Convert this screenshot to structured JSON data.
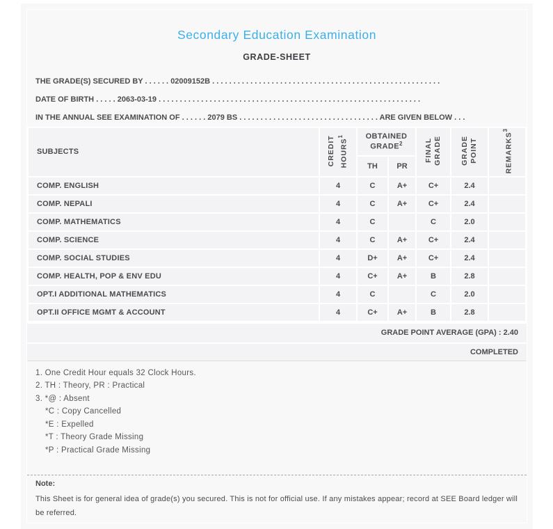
{
  "header": {
    "title": "Secondary Education Examination",
    "subtitle": "GRADE-SHEET",
    "title_color": "#3cafe8"
  },
  "student_info": [
    {
      "label": "THE GRADE(S) SECURED BY",
      "pre_dots": ". . . . . .",
      "value": "02009152B",
      "post_dots": ". . . . . . . . . . . . . . . . . . . . . . . . . . . . . . . . . . . . . . . . . . . . . . . . . . . . . .",
      "suffix": "",
      "end_dots": ""
    },
    {
      "label": "DATE OF BIRTH",
      "pre_dots": ". . . . .",
      "value": "2063-03-19",
      "post_dots": ". . . . . . . . . . . . . . . . . . . . . . . . . . . . . . . . . . . . . . . . . . . . . . . . . . . . . . . . . . . . . .",
      "suffix": "",
      "end_dots": ""
    },
    {
      "label": "IN THE ANNUAL SEE EXAMINATION OF",
      "pre_dots": ". . . . . .",
      "value": "2079 BS",
      "post_dots": ". . . . . . . . . . . . . . . . . . . . . . . . . . . . . . . . .",
      "suffix": "ARE GIVEN BELOW",
      "end_dots": ". . ."
    }
  ],
  "table": {
    "headers": {
      "subjects": "SUBJECTS",
      "credit_hours": {
        "line1": "CREDIT",
        "line2": "HOURS",
        "sup": "1"
      },
      "obtained_grade": {
        "text": "OBTAINED GRADE",
        "sup": "2"
      },
      "th": "TH",
      "pr": "PR",
      "final_grade": {
        "line1": "FINAL",
        "line2": "GRADE",
        "sup": ""
      },
      "grade_point": {
        "line1": "GRADE",
        "line2": "POINT",
        "sup": ""
      },
      "remarks": {
        "text": "REMARKS",
        "sup": "3"
      }
    },
    "rows": [
      {
        "subject": "COMP. ENGLISH",
        "credit": "4",
        "th": "C",
        "pr": "A+",
        "final": "C+",
        "gp": "2.4",
        "remarks": ""
      },
      {
        "subject": "COMP. NEPALI",
        "credit": "4",
        "th": "C",
        "pr": "A+",
        "final": "C+",
        "gp": "2.4",
        "remarks": ""
      },
      {
        "subject": "COMP. MATHEMATICS",
        "credit": "4",
        "th": "C",
        "pr": "",
        "final": "C",
        "gp": "2.0",
        "remarks": ""
      },
      {
        "subject": "COMP. SCIENCE",
        "credit": "4",
        "th": "C",
        "pr": "A+",
        "final": "C+",
        "gp": "2.4",
        "remarks": ""
      },
      {
        "subject": "COMP. SOCIAL STUDIES",
        "credit": "4",
        "th": "D+",
        "pr": "A+",
        "final": "C+",
        "gp": "2.4",
        "remarks": ""
      },
      {
        "subject": "COMP. HEALTH, POP & ENV EDU",
        "credit": "4",
        "th": "C+",
        "pr": "A+",
        "final": "B",
        "gp": "2.8",
        "remarks": ""
      },
      {
        "subject": "OPT.I ADDITIONAL MATHEMATICS",
        "credit": "4",
        "th": "C",
        "pr": "",
        "final": "C",
        "gp": "2.0",
        "remarks": ""
      },
      {
        "subject": "OPT.II OFFICE MGMT & ACCOUNT",
        "credit": "4",
        "th": "C+",
        "pr": "A+",
        "final": "B",
        "gp": "2.8",
        "remarks": ""
      }
    ]
  },
  "summary": {
    "gpa_line": "GRADE POINT AVERAGE (GPA) : 2.40",
    "status": "COMPLETED"
  },
  "footnotes": [
    {
      "text": "1. One Credit Hour equals 32 Clock Hours.",
      "indent": false
    },
    {
      "text": "2. TH : Theory, PR : Practical",
      "indent": false
    },
    {
      "text": "3. *@ : Absent",
      "indent": false
    },
    {
      "text": "*C : Copy Cancelled",
      "indent": true
    },
    {
      "text": "*E : Expelled",
      "indent": true
    },
    {
      "text": "*T : Theory Grade Missing",
      "indent": true
    },
    {
      "text": "*P : Practical Grade Missing",
      "indent": true
    }
  ],
  "note": {
    "label": "Note:",
    "text": "This Sheet is for general idea of grade(s) you secured. This is not for official use. If any mistakes appear; record at SEE Board ledger will be referred."
  }
}
